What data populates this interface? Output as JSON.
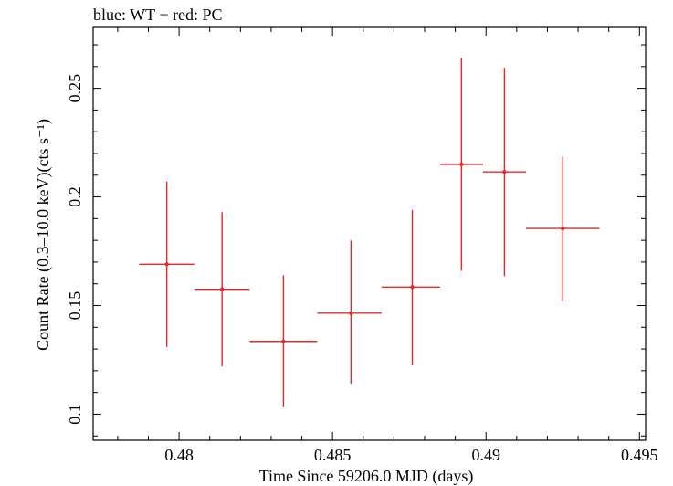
{
  "chart_data": {
    "type": "scatter",
    "title": "blue: WT − red: PC",
    "xlabel": "Time Since 59206.0 MJD (days)",
    "ylabel": "Count Rate (0.3–10.0 keV)(cts s⁻¹)",
    "xlim": [
      0.4772,
      0.4952
    ],
    "ylim": [
      0.088,
      0.278
    ],
    "x_ticks": [
      0.48,
      0.485,
      0.49,
      0.495
    ],
    "x_tick_labels": [
      "0.48",
      "0.485",
      "0.49",
      "0.495"
    ],
    "y_ticks": [
      0.1,
      0.15,
      0.2,
      0.25
    ],
    "y_tick_labels": [
      "0.1",
      "0.15",
      "0.2",
      "0.25"
    ],
    "grid": false,
    "series": [
      {
        "name": "PC",
        "color": "#e8282b",
        "points": [
          {
            "x": 0.4796,
            "y": 0.169,
            "xerr": [
              0.4787,
              0.4805
            ],
            "yerr": [
              0.131,
              0.207
            ]
          },
          {
            "x": 0.4814,
            "y": 0.1575,
            "xerr": [
              0.4805,
              0.4823
            ],
            "yerr": [
              0.122,
              0.193
            ]
          },
          {
            "x": 0.4834,
            "y": 0.1335,
            "xerr": [
              0.4823,
              0.4845
            ],
            "yerr": [
              0.1035,
              0.164
            ]
          },
          {
            "x": 0.4856,
            "y": 0.1465,
            "xerr": [
              0.4845,
              0.4866
            ],
            "yerr": [
              0.114,
              0.18
            ]
          },
          {
            "x": 0.4876,
            "y": 0.1585,
            "xerr": [
              0.4866,
              0.4885
            ],
            "yerr": [
              0.1225,
              0.194
            ]
          },
          {
            "x": 0.4892,
            "y": 0.215,
            "xerr": [
              0.4885,
              0.4899
            ],
            "yerr": [
              0.166,
              0.264
            ]
          },
          {
            "x": 0.4906,
            "y": 0.2115,
            "xerr": [
              0.4899,
              0.4913
            ],
            "yerr": [
              0.1635,
              0.2595
            ]
          },
          {
            "x": 0.4925,
            "y": 0.1855,
            "xerr": [
              0.4913,
              0.4937
            ],
            "yerr": [
              0.152,
              0.2185
            ]
          }
        ]
      }
    ]
  }
}
